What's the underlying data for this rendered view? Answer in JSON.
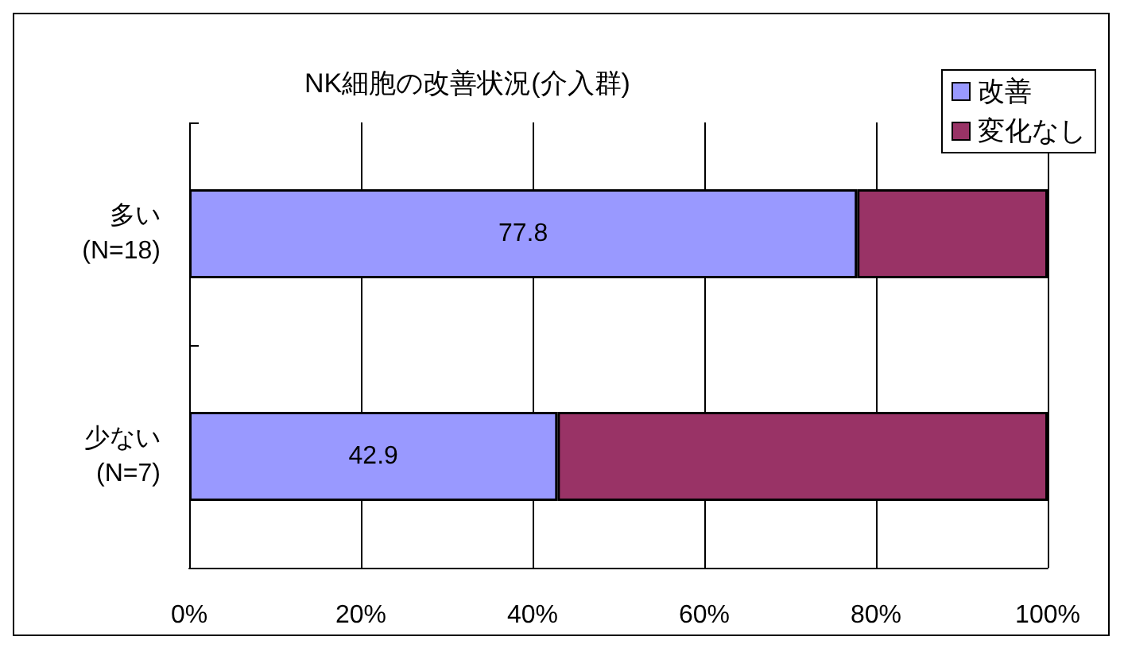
{
  "chart_data": {
    "type": "bar",
    "orientation": "horizontal",
    "stacked": true,
    "title": "NK細胞の改善状況(介入群)",
    "categories": [
      "多い\n(N=18)",
      "少ない\n(N=7)"
    ],
    "series": [
      {
        "name": "改善",
        "color": "#9999ff",
        "values": [
          77.8,
          42.9
        ],
        "value_labels": [
          "77.8",
          "42.9"
        ]
      },
      {
        "name": "変化なし",
        "color": "#993366",
        "values": [
          22.2,
          57.1
        ]
      }
    ],
    "xlim": [
      0,
      100
    ],
    "xticks": [
      {
        "value": 0,
        "label": "0%"
      },
      {
        "value": 20,
        "label": "20%"
      },
      {
        "value": 40,
        "label": "40%"
      },
      {
        "value": 60,
        "label": "60%"
      },
      {
        "value": 80,
        "label": "80%"
      },
      {
        "value": 100,
        "label": "100%"
      }
    ],
    "grid": "x",
    "legend": "top right"
  }
}
